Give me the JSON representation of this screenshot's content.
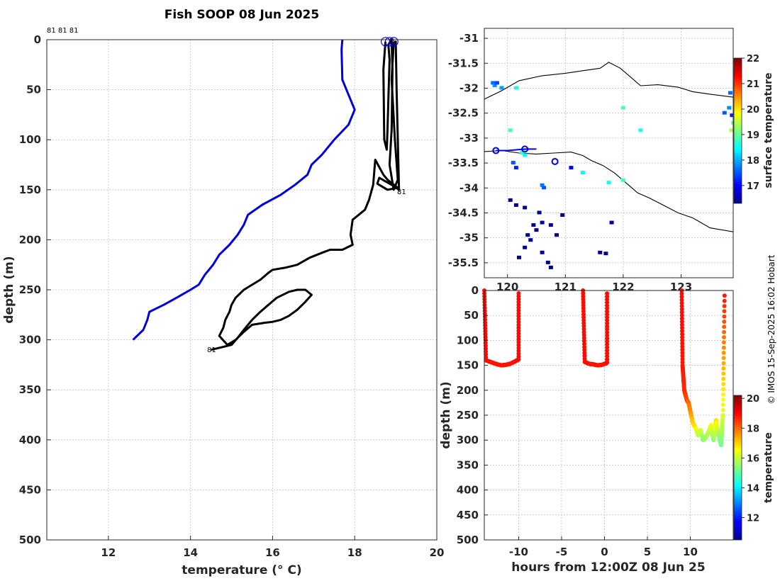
{
  "page": {
    "title": "Fish SOOP 08 Jun 2025",
    "credit": "© IMOS 15-Sep-2025 16:02 Hobart",
    "profile_ids_top": "81 81 81",
    "profile_id_mid": "81",
    "profile_id_bottom": "81"
  },
  "chart_data": [
    {
      "id": "profiles",
      "type": "line",
      "title": "Fish SOOP 08 Jun 2025",
      "xlabel": "temperature (° C)",
      "ylabel": "depth (m)",
      "xlim": [
        10.5,
        20
      ],
      "ylim": [
        500,
        0
      ],
      "xticks": [
        12,
        14,
        16,
        18,
        20
      ],
      "yticks": [
        0,
        50,
        100,
        150,
        200,
        250,
        300,
        350,
        400,
        450,
        500
      ],
      "grid": true,
      "series": [
        {
          "name": "climatology",
          "color": "#0000dd",
          "points": [
            [
              17.7,
              0
            ],
            [
              17.68,
              10
            ],
            [
              17.7,
              40
            ],
            [
              17.85,
              55
            ],
            [
              18.0,
              70
            ],
            [
              17.85,
              85
            ],
            [
              17.5,
              100
            ],
            [
              17.2,
              115
            ],
            [
              16.95,
              125
            ],
            [
              16.85,
              135
            ],
            [
              16.55,
              145
            ],
            [
              16.2,
              155
            ],
            [
              15.75,
              165
            ],
            [
              15.4,
              175
            ],
            [
              15.3,
              185
            ],
            [
              15.15,
              195
            ],
            [
              14.95,
              205
            ],
            [
              14.7,
              215
            ],
            [
              14.55,
              225
            ],
            [
              14.35,
              235
            ],
            [
              14.2,
              245
            ],
            [
              14.0,
              250
            ],
            [
              13.7,
              257
            ],
            [
              13.35,
              265
            ],
            [
              13.0,
              272
            ],
            [
              12.95,
              280
            ],
            [
              12.85,
              290
            ],
            [
              12.6,
              300
            ]
          ]
        },
        {
          "name": "fish profile",
          "color": "#000000",
          "points": [
            [
              18.75,
              2
            ],
            [
              18.7,
              30
            ],
            [
              18.72,
              100
            ],
            [
              18.78,
              110
            ],
            [
              18.8,
              90
            ],
            [
              18.82,
              60
            ],
            [
              18.85,
              20
            ],
            [
              18.82,
              5
            ],
            [
              18.9,
              0
            ],
            [
              18.92,
              30
            ],
            [
              18.9,
              90
            ],
            [
              18.85,
              125
            ],
            [
              18.95,
              150
            ],
            [
              19.05,
              140
            ],
            [
              18.98,
              100
            ],
            [
              18.9,
              40
            ],
            [
              18.95,
              3
            ],
            [
              19.0,
              2
            ],
            [
              19.02,
              50
            ],
            [
              19.05,
              100
            ],
            [
              19.08,
              150
            ],
            [
              19.02,
              148
            ],
            [
              18.6,
              138
            ],
            [
              18.55,
              144
            ],
            [
              18.8,
              150
            ],
            [
              19.05,
              148
            ],
            [
              18.8,
              140
            ],
            [
              18.7,
              135
            ],
            [
              18.5,
              120
            ],
            [
              18.45,
              145
            ],
            [
              18.35,
              160
            ],
            [
              18.25,
              170
            ],
            [
              18.1,
              175
            ],
            [
              17.95,
              180
            ],
            [
              17.9,
              195
            ],
            [
              17.95,
              205
            ],
            [
              17.7,
              210
            ],
            [
              17.4,
              210
            ],
            [
              17.2,
              213
            ],
            [
              16.9,
              218
            ],
            [
              16.6,
              225
            ],
            [
              16.3,
              228
            ],
            [
              16.0,
              230
            ],
            [
              15.9,
              233
            ],
            [
              15.7,
              240
            ],
            [
              15.5,
              245
            ],
            [
              15.3,
              250
            ],
            [
              15.1,
              258
            ],
            [
              15.0,
              265
            ],
            [
              14.95,
              272
            ],
            [
              14.85,
              280
            ],
            [
              14.8,
              288
            ],
            [
              14.7,
              296
            ],
            [
              14.9,
              305
            ],
            [
              15.1,
              300
            ],
            [
              15.3,
              292
            ],
            [
              15.5,
              285
            ],
            [
              15.8,
              283
            ],
            [
              16.0,
              282
            ],
            [
              16.2,
              280
            ],
            [
              16.4,
              276
            ],
            [
              16.6,
              270
            ],
            [
              16.8,
              262
            ],
            [
              16.95,
              255
            ],
            [
              16.8,
              250
            ],
            [
              16.6,
              250
            ],
            [
              16.4,
              252
            ],
            [
              16.1,
              258
            ],
            [
              15.9,
              265
            ],
            [
              15.7,
              272
            ],
            [
              15.5,
              280
            ],
            [
              15.3,
              290
            ],
            [
              15.15,
              298
            ],
            [
              15.0,
              305
            ],
            [
              14.7,
              308
            ],
            [
              14.5,
              310
            ]
          ]
        }
      ],
      "markers": [
        {
          "name": "surface-marker",
          "x": 18.75,
          "y": 2
        },
        {
          "name": "surface-marker",
          "x": 18.85,
          "y": 2
        },
        {
          "name": "surface-marker",
          "x": 18.95,
          "y": 2
        }
      ]
    },
    {
      "id": "map",
      "type": "scatter",
      "xlim": [
        119.6,
        123.9
      ],
      "ylim": [
        -35.8,
        -30.8
      ],
      "xticks": [
        120,
        121,
        122,
        123
      ],
      "yticks": [
        -35.5,
        -35,
        -34.5,
        -34,
        -33.5,
        -33,
        -32.5,
        -32,
        -31.5,
        -31
      ],
      "colorbar": {
        "label": "surface temperature",
        "range": [
          16.3,
          22
        ],
        "ticks": [
          17,
          18,
          19,
          20,
          21,
          22
        ]
      },
      "coastlines": [
        {
          "name": "coastline-north",
          "points": [
            [
              119.6,
              -32.22
            ],
            [
              119.9,
              -32.05
            ],
            [
              120.2,
              -31.85
            ],
            [
              120.6,
              -31.75
            ],
            [
              121.0,
              -31.7
            ],
            [
              121.3,
              -31.65
            ],
            [
              121.6,
              -31.6
            ],
            [
              121.75,
              -31.48
            ],
            [
              121.95,
              -31.6
            ],
            [
              122.2,
              -31.85
            ],
            [
              122.3,
              -31.95
            ],
            [
              122.6,
              -31.93
            ],
            [
              122.95,
              -31.98
            ],
            [
              123.2,
              -32.07
            ],
            [
              123.5,
              -32.12
            ],
            [
              123.9,
              -32.18
            ]
          ]
        },
        {
          "name": "coastline-south",
          "points": [
            [
              119.6,
              -33.27
            ],
            [
              119.9,
              -33.25
            ],
            [
              120.2,
              -33.3
            ],
            [
              120.5,
              -33.32
            ],
            [
              120.8,
              -33.3
            ],
            [
              121.1,
              -33.28
            ],
            [
              121.3,
              -33.35
            ],
            [
              121.45,
              -33.45
            ],
            [
              121.65,
              -33.55
            ],
            [
              121.85,
              -33.7
            ],
            [
              122.05,
              -33.9
            ],
            [
              122.25,
              -34.1
            ],
            [
              122.45,
              -34.2
            ],
            [
              122.65,
              -34.32
            ],
            [
              122.95,
              -34.5
            ],
            [
              123.2,
              -34.6
            ],
            [
              123.5,
              -34.8
            ],
            [
              123.9,
              -34.88
            ]
          ]
        }
      ],
      "track": [
        [
          119.8,
          -33.25
        ],
        [
          120.0,
          -33.25
        ],
        [
          120.3,
          -33.22
        ],
        [
          120.5,
          -33.22
        ]
      ],
      "track_markers": [
        [
          119.8,
          -33.25
        ],
        [
          120.3,
          -33.22
        ],
        [
          120.82,
          -33.47
        ]
      ],
      "points": [
        {
          "x": 119.75,
          "y": -31.9,
          "v": 17.6
        },
        {
          "x": 119.78,
          "y": -31.95,
          "v": 17.8
        },
        {
          "x": 119.82,
          "y": -31.9,
          "v": 17.4
        },
        {
          "x": 119.9,
          "y": -32.0,
          "v": 17.9
        },
        {
          "x": 120.15,
          "y": -32.0,
          "v": 18.6
        },
        {
          "x": 120.05,
          "y": -32.85,
          "v": 18.8
        },
        {
          "x": 120.25,
          "y": -33.3,
          "v": 18.7
        },
        {
          "x": 120.28,
          "y": -33.25,
          "v": 19.0
        },
        {
          "x": 120.3,
          "y": -33.35,
          "v": 18.5
        },
        {
          "x": 120.1,
          "y": -33.5,
          "v": 17.5
        },
        {
          "x": 120.15,
          "y": -33.6,
          "v": 17.2
        },
        {
          "x": 120.6,
          "y": -33.95,
          "v": 17.7
        },
        {
          "x": 120.63,
          "y": -34.0,
          "v": 17.5
        },
        {
          "x": 120.05,
          "y": -34.25,
          "v": 16.4
        },
        {
          "x": 120.15,
          "y": -34.35,
          "v": 16.4
        },
        {
          "x": 120.3,
          "y": -34.4,
          "v": 16.4
        },
        {
          "x": 120.55,
          "y": -34.5,
          "v": 16.4
        },
        {
          "x": 120.6,
          "y": -34.7,
          "v": 16.4
        },
        {
          "x": 120.45,
          "y": -34.75,
          "v": 16.4
        },
        {
          "x": 120.5,
          "y": -34.85,
          "v": 16.4
        },
        {
          "x": 120.35,
          "y": -34.95,
          "v": 16.4
        },
        {
          "x": 120.4,
          "y": -35.05,
          "v": 16.4
        },
        {
          "x": 120.3,
          "y": -35.2,
          "v": 16.4
        },
        {
          "x": 120.75,
          "y": -34.75,
          "v": 16.4
        },
        {
          "x": 120.85,
          "y": -34.95,
          "v": 16.4
        },
        {
          "x": 120.95,
          "y": -34.55,
          "v": 16.4
        },
        {
          "x": 120.6,
          "y": -35.3,
          "v": 16.4
        },
        {
          "x": 120.7,
          "y": -35.5,
          "v": 16.4
        },
        {
          "x": 120.75,
          "y": -35.6,
          "v": 16.4
        },
        {
          "x": 120.2,
          "y": -35.4,
          "v": 16.4
        },
        {
          "x": 121.1,
          "y": -33.6,
          "v": 17.0
        },
        {
          "x": 121.3,
          "y": -33.7,
          "v": 18.4
        },
        {
          "x": 121.75,
          "y": -33.9,
          "v": 18.5
        },
        {
          "x": 122.0,
          "y": -33.85,
          "v": 18.8
        },
        {
          "x": 121.6,
          "y": -35.3,
          "v": 16.4
        },
        {
          "x": 121.7,
          "y": -35.32,
          "v": 16.4
        },
        {
          "x": 121.8,
          "y": -34.7,
          "v": 16.4
        },
        {
          "x": 122.3,
          "y": -32.85,
          "v": 18.6
        },
        {
          "x": 122.0,
          "y": -32.4,
          "v": 18.9
        },
        {
          "x": 123.85,
          "y": -32.1,
          "v": 17.6
        },
        {
          "x": 123.88,
          "y": -32.55,
          "v": 17.2
        },
        {
          "x": 123.9,
          "y": -32.7,
          "v": 19.0
        },
        {
          "x": 123.83,
          "y": -32.4,
          "v": 17.8
        },
        {
          "x": 123.75,
          "y": -32.5,
          "v": 17.5
        },
        {
          "x": 123.87,
          "y": -32.85,
          "v": 19.4
        }
      ]
    },
    {
      "id": "time-depth",
      "type": "scatter",
      "xlabel": "hours from 12:00Z 08 Jun 25",
      "ylabel": "depth (m)",
      "xlim": [
        -14,
        15
      ],
      "ylim": [
        500,
        0
      ],
      "xticks": [
        -10,
        -5,
        0,
        5,
        10
      ],
      "yticks": [
        0,
        50,
        100,
        150,
        200,
        250,
        300,
        350,
        400,
        450,
        500
      ],
      "colorbar": {
        "label": "temperature",
        "range": [
          10.5,
          20.2
        ],
        "ticks": [
          12,
          14,
          16,
          18,
          20
        ]
      },
      "segments": [
        {
          "t": [
            -14,
            -13.8,
            -13,
            -12.5,
            -12,
            -11.5,
            -11,
            -10.5,
            -10,
            -10
          ],
          "d": [
            0,
            140,
            145,
            148,
            150,
            149,
            147,
            143,
            138,
            0
          ],
          "temp": [
            18.9,
            18.9,
            18.8,
            18.8,
            18.8,
            18.8,
            18.8,
            18.8,
            18.9,
            18.9
          ]
        },
        {
          "t": [
            -2.5,
            -2.3,
            -1.8,
            -1.3,
            -0.8,
            -0.3,
            0.2,
            0.3,
            0.3
          ],
          "d": [
            0,
            143,
            147,
            148,
            150,
            149,
            146,
            144,
            0
          ],
          "temp": [
            18.9,
            18.9,
            18.8,
            18.8,
            18.8,
            18.8,
            18.8,
            18.9,
            18.9
          ]
        },
        {
          "t": [
            9,
            9.1,
            9.3,
            9.6,
            9.8,
            10.1,
            10.3,
            10.6,
            10.9,
            11.2,
            11.5,
            11.8,
            12.1,
            12.4,
            12.7,
            13.0,
            13.3,
            13.6,
            13.8,
            14.0
          ],
          "d": [
            0,
            150,
            200,
            220,
            225,
            250,
            265,
            275,
            290,
            280,
            300,
            295,
            285,
            270,
            300,
            260,
            290,
            310,
            250,
            0
          ],
          "temp": [
            18.9,
            18.8,
            18.6,
            18.3,
            18.0,
            17.5,
            17.0,
            16.8,
            15.9,
            16.2,
            15.5,
            15.6,
            15.8,
            16.5,
            15.4,
            16.9,
            15.7,
            15.2,
            16.2,
            18.9
          ]
        }
      ]
    }
  ]
}
